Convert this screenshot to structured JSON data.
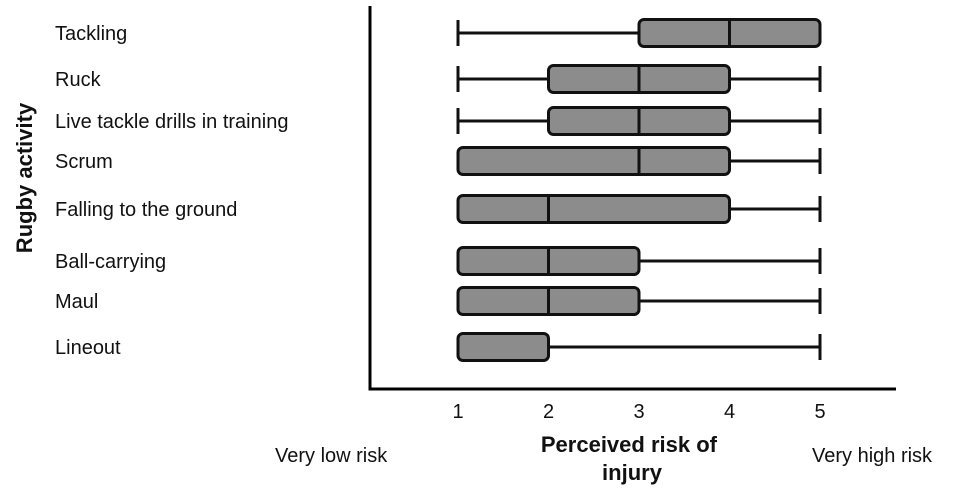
{
  "chart_data": {
    "type": "box",
    "orientation": "horizontal",
    "title": "",
    "xlabel": "Perceived risk of injury",
    "ylabel": "Rugby activity",
    "x_ticks": [
      1,
      2,
      3,
      4,
      5
    ],
    "xlim": [
      0,
      5.8
    ],
    "x_end_labels": {
      "low": "Very low risk",
      "high": "Very high risk"
    },
    "box_color": "#8c8c8c",
    "categories": [
      "Tackling",
      "Ruck",
      "Live tackle drills in training",
      "Scrum",
      "Falling to the ground",
      "Ball-carrying",
      "Maul",
      "Lineout"
    ],
    "boxes": [
      {
        "label": "Tackling",
        "min": 1,
        "q1": 3,
        "median": 4,
        "q3": 5,
        "max": 5
      },
      {
        "label": "Ruck",
        "min": 1,
        "q1": 2,
        "median": 3,
        "q3": 4,
        "max": 5
      },
      {
        "label": "Live tackle drills in training",
        "min": 1,
        "q1": 2,
        "median": 3,
        "q3": 4,
        "max": 5
      },
      {
        "label": "Scrum",
        "min": 1,
        "q1": 1,
        "median": 3,
        "q3": 4,
        "max": 5
      },
      {
        "label": "Falling to the ground",
        "min": 1,
        "q1": 1,
        "median": 2,
        "q3": 4,
        "max": 5
      },
      {
        "label": "Ball-carrying",
        "min": 1,
        "q1": 1,
        "median": 2,
        "q3": 3,
        "max": 5
      },
      {
        "label": "Maul",
        "min": 1,
        "q1": 1,
        "median": 2,
        "q3": 3,
        "max": 5
      },
      {
        "label": "Lineout",
        "min": 1,
        "q1": 1,
        "median": 1,
        "q3": 2,
        "max": 5
      }
    ]
  }
}
